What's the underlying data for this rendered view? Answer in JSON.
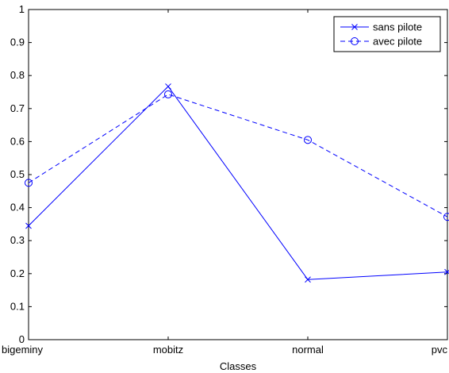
{
  "chart_data": {
    "type": "line",
    "title": "",
    "xlabel": "Classes",
    "ylabel": "",
    "categories": [
      "bigeminy",
      "mobitz",
      "normal",
      "pvc"
    ],
    "ylim": [
      0,
      1
    ],
    "yticks": [
      0,
      0.1,
      0.2,
      0.3,
      0.4,
      0.5,
      0.6,
      0.7,
      0.8,
      0.9,
      1
    ],
    "ytick_labels": [
      "0",
      "0.1",
      "0.2",
      "0.3",
      "0.4",
      "0.5",
      "0.6",
      "0.7",
      "0.8",
      "0.9",
      "1"
    ],
    "grid": false,
    "legend_position": "top-right",
    "series": [
      {
        "name": "sans pilote",
        "values": [
          0.345,
          0.767,
          0.182,
          0.205
        ],
        "color": "#0000ff",
        "line_style": "solid",
        "marker": "x"
      },
      {
        "name": "avec pilote",
        "values": [
          0.475,
          0.743,
          0.605,
          0.372
        ],
        "color": "#0000ff",
        "line_style": "dashed",
        "marker": "circle"
      }
    ]
  }
}
